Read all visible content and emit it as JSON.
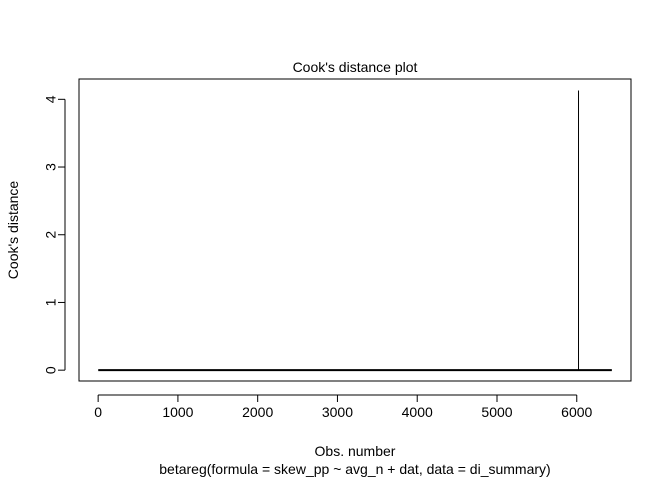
{
  "chart_data": {
    "type": "bar",
    "title": "Cook's distance plot",
    "xlabel": "Obs. number",
    "ylabel": "Cook's distance",
    "subtitle": "betareg(formula = skew_pp ~ avg_n + dat, data = di_summary)",
    "xlim": [
      -240,
      6680
    ],
    "ylim": [
      -0.16,
      4.3
    ],
    "x_ticks": [
      0,
      1000,
      2000,
      3000,
      4000,
      5000,
      6000
    ],
    "y_ticks": [
      0,
      1,
      2,
      3,
      4
    ],
    "n_obs": 6440,
    "baseline_value": 0,
    "spikes": [
      {
        "x": 6022,
        "y": 4.13
      }
    ],
    "grid": false,
    "color": "#000000"
  }
}
